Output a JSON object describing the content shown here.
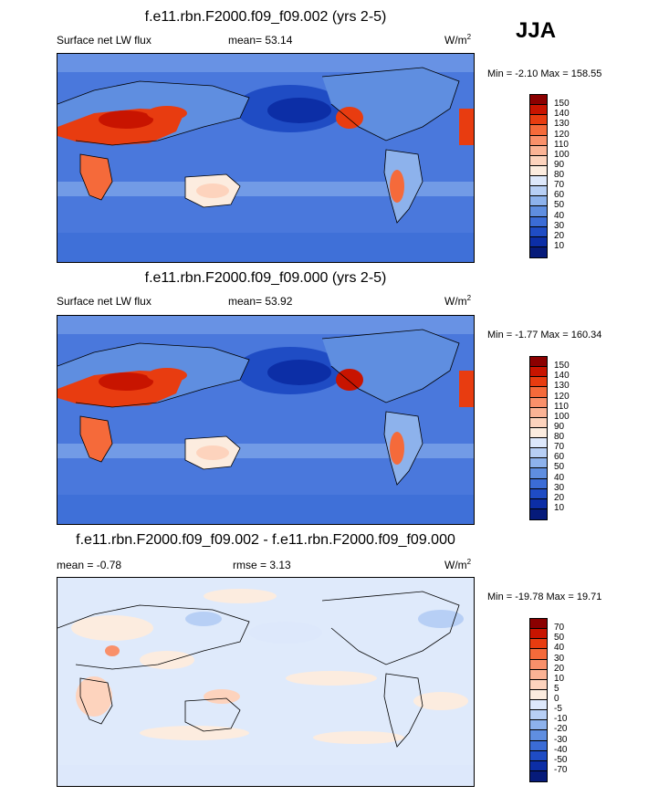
{
  "season": "JJA",
  "panels": [
    {
      "title": "f.e11.rbn.F2000.f09_f09.002 (yrs 2-5)",
      "left_label": "Surface net LW flux",
      "center_label": "mean=  53.14",
      "units_base": "W/m",
      "units_exp": "2",
      "minmax": "Min =  -2.10 Max = 158.55",
      "levels": [
        "150",
        "140",
        "130",
        "120",
        "110",
        "100",
        "90",
        "80",
        "70",
        "60",
        "50",
        "40",
        "30",
        "20",
        "10"
      ],
      "colors": [
        "#8b0000",
        "#c81400",
        "#e83c10",
        "#f56a3a",
        "#f9906a",
        "#fbb395",
        "#fdd3bd",
        "#fcecdf",
        "#dde8fb",
        "#b7cff5",
        "#8db2ec",
        "#5f8ee0",
        "#3b6cd6",
        "#1f4cc4",
        "#0c2ea6",
        "#061b7a"
      ],
      "map_base": "#4a78dc"
    },
    {
      "title": "f.e11.rbn.F2000.f09_f09.000 (yrs 2-5)",
      "left_label": "Surface net LW flux",
      "center_label": "mean=  53.92",
      "units_base": "W/m",
      "units_exp": "2",
      "minmax": "Min =  -1.77 Max = 160.34",
      "levels": [
        "150",
        "140",
        "130",
        "120",
        "110",
        "100",
        "90",
        "80",
        "70",
        "60",
        "50",
        "40",
        "30",
        "20",
        "10"
      ],
      "colors": [
        "#8b0000",
        "#c81400",
        "#e83c10",
        "#f56a3a",
        "#f9906a",
        "#fbb395",
        "#fdd3bd",
        "#fcecdf",
        "#dde8fb",
        "#b7cff5",
        "#8db2ec",
        "#5f8ee0",
        "#3b6cd6",
        "#1f4cc4",
        "#0c2ea6",
        "#061b7a"
      ],
      "map_base": "#4a78dc"
    },
    {
      "title": "f.e11.rbn.F2000.f09_f09.002 - f.e11.rbn.F2000.f09_f09.000",
      "left_label": "mean =  -0.78",
      "center_label": "rmse =   3.13",
      "units_base": "W/m",
      "units_exp": "2",
      "minmax": "Min = -19.78 Max =  19.71",
      "levels": [
        "70",
        "50",
        "40",
        "30",
        "20",
        "10",
        "5",
        "0",
        "-5",
        "-10",
        "-20",
        "-30",
        "-40",
        "-50",
        "-70"
      ],
      "colors": [
        "#8b0000",
        "#c81400",
        "#e83c10",
        "#f56a3a",
        "#f9906a",
        "#fbb395",
        "#fdd3bd",
        "#fcecdf",
        "#dde8fb",
        "#b7cff5",
        "#8db2ec",
        "#5f8ee0",
        "#3b6cd6",
        "#1f4cc4",
        "#0c2ea6",
        "#061b7a"
      ],
      "map_base": "#dfeafb"
    }
  ]
}
